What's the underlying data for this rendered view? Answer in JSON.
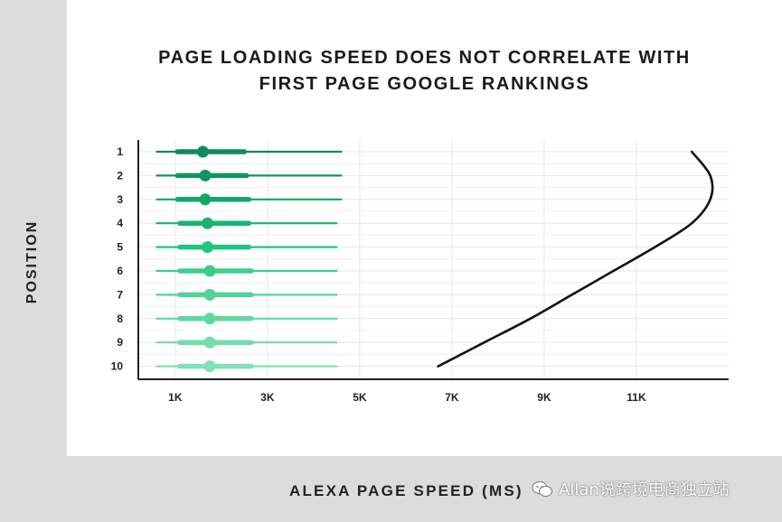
{
  "chart_data": {
    "type": "boxplot",
    "title": "PAGE LOADING SPEED DOES NOT CORRELATE WITH FIRST PAGE GOOGLE RANKINGS",
    "title_lines": [
      "PAGE LOADING SPEED DOES NOT CORRELATE WITH",
      "FIRST PAGE GOOGLE RANKINGS"
    ],
    "xlabel": "ALEXA PAGE SPEED (MS)",
    "ylabel": "POSITION",
    "xlim": [
      200,
      13000
    ],
    "x_ticks": [
      {
        "value": 1000,
        "label": "1K"
      },
      {
        "value": 3000,
        "label": "3K"
      },
      {
        "value": 5000,
        "label": "5K"
      },
      {
        "value": 7000,
        "label": "7K"
      },
      {
        "value": 9000,
        "label": "9K"
      },
      {
        "value": 11000,
        "label": "11K"
      }
    ],
    "positions": [
      "1",
      "2",
      "3",
      "4",
      "5",
      "6",
      "7",
      "8",
      "9",
      "10"
    ],
    "grid": true,
    "box_stats": [
      {
        "position": 1,
        "whisker_low": 600,
        "q1": 1050,
        "median": 1600,
        "q3": 2500,
        "whisker_high": 4600,
        "color": "#0f8a5f"
      },
      {
        "position": 2,
        "whisker_low": 600,
        "q1": 1050,
        "median": 1650,
        "q3": 2550,
        "whisker_high": 4600,
        "color": "#12955f"
      },
      {
        "position": 3,
        "whisker_low": 600,
        "q1": 1050,
        "median": 1650,
        "q3": 2600,
        "whisker_high": 4600,
        "color": "#15a667"
      },
      {
        "position": 4,
        "whisker_low": 600,
        "q1": 1100,
        "median": 1700,
        "q3": 2600,
        "whisker_high": 4500,
        "color": "#19b46f"
      },
      {
        "position": 5,
        "whisker_low": 600,
        "q1": 1100,
        "median": 1700,
        "q3": 2600,
        "whisker_high": 4500,
        "color": "#1fc77e"
      },
      {
        "position": 6,
        "whisker_low": 600,
        "q1": 1100,
        "median": 1750,
        "q3": 2650,
        "whisker_high": 4500,
        "color": "#3ccf8c"
      },
      {
        "position": 7,
        "whisker_low": 600,
        "q1": 1100,
        "median": 1750,
        "q3": 2650,
        "whisker_high": 4500,
        "color": "#4fd597"
      },
      {
        "position": 8,
        "whisker_low": 600,
        "q1": 1100,
        "median": 1750,
        "q3": 2650,
        "whisker_high": 4500,
        "color": "#5ed9a0"
      },
      {
        "position": 9,
        "whisker_low": 600,
        "q1": 1100,
        "median": 1750,
        "q3": 2650,
        "whisker_high": 4500,
        "color": "#6fdeaa"
      },
      {
        "position": 10,
        "whisker_low": 600,
        "q1": 1100,
        "median": 1750,
        "q3": 2650,
        "whisker_high": 4500,
        "color": "#7ee2b3"
      }
    ],
    "trend_line": {
      "points": [
        {
          "position": 1,
          "x": 12200
        },
        {
          "position": 2,
          "x": 12600
        },
        {
          "position": 3,
          "x": 12600
        },
        {
          "position": 4,
          "x": 12200
        },
        {
          "position": 5,
          "x": 11400
        },
        {
          "position": 6,
          "x": 10500
        },
        {
          "position": 7,
          "x": 9600
        },
        {
          "position": 8,
          "x": 8700
        },
        {
          "position": 9,
          "x": 7700
        },
        {
          "position": 10,
          "x": 6700
        }
      ],
      "color": "#111111"
    }
  },
  "watermark": {
    "text": "Allan说跨境电商独立站",
    "icon": "wechat-icon"
  }
}
